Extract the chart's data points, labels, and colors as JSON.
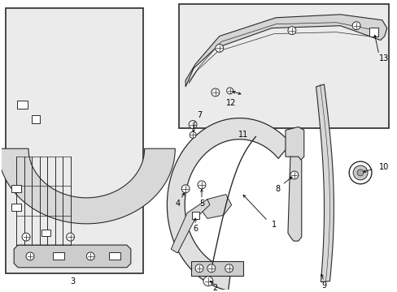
{
  "bg_color": "#ffffff",
  "lc": "#2a2a2a",
  "fill_inset": "#ebebeb",
  "fill_part": "#d8d8d8",
  "fill_white": "#f8f8f8"
}
